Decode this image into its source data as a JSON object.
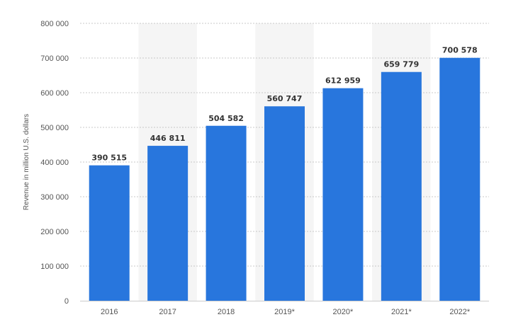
{
  "chart_data": {
    "type": "bar",
    "categories": [
      "2016",
      "2017",
      "2018",
      "2019*",
      "2020*",
      "2021*",
      "2022*"
    ],
    "values": [
      390515,
      446811,
      504582,
      560747,
      612959,
      659779,
      700578
    ],
    "value_labels": [
      "390 515",
      "446 811",
      "504 582",
      "560 747",
      "612 959",
      "659 779",
      "700 578"
    ],
    "ylabel": "Revenue in million U.S. dollars",
    "xlabel": "",
    "ylim": [
      0,
      800000
    ],
    "yticks": [
      0,
      100000,
      200000,
      300000,
      400000,
      500000,
      600000,
      700000,
      800000
    ],
    "ytick_labels": [
      "0",
      "100 000",
      "200 000",
      "300 000",
      "400 000",
      "500 000",
      "600 000",
      "700 000",
      "800 000"
    ],
    "grid": true,
    "bar_color": "#2876dd",
    "band_color": "#f5f5f5"
  }
}
